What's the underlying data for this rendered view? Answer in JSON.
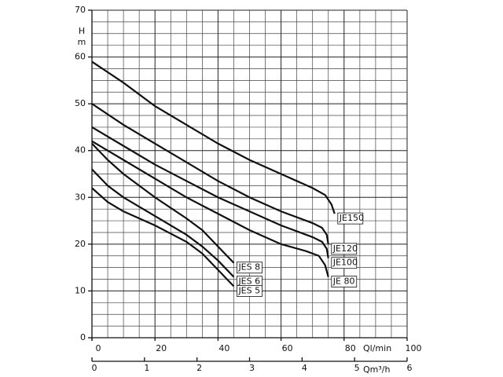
{
  "chart_data": {
    "type": "line",
    "y_label": "H",
    "y_unit": "m",
    "x_label": "Ql/min",
    "x2_label": "Qm³/h",
    "xlim": [
      0,
      100
    ],
    "xticks": [
      0,
      20,
      40,
      60,
      80,
      100
    ],
    "ylim": [
      0,
      70
    ],
    "yticks": [
      0,
      10,
      20,
      30,
      40,
      50,
      60,
      70
    ],
    "x2lim": [
      0,
      6
    ],
    "x2ticks": [
      0,
      1,
      2,
      3,
      4,
      5,
      6
    ],
    "grid": true,
    "series": [
      {
        "name": "JE150",
        "color": "#111111",
        "x": [
          0,
          10,
          20,
          30,
          40,
          50,
          60,
          70,
          74,
          76,
          77
        ],
        "values": [
          59,
          54.5,
          49.5,
          45.5,
          41.5,
          38,
          35,
          32,
          30.5,
          28.5,
          26.5
        ]
      },
      {
        "name": "JE120",
        "color": "#111111",
        "x": [
          0,
          10,
          20,
          30,
          40,
          50,
          60,
          70,
          73,
          74.5,
          75
        ],
        "values": [
          50,
          45.5,
          41.5,
          37.5,
          33.5,
          30,
          27,
          24.5,
          23.5,
          22,
          20
        ]
      },
      {
        "name": "JE100",
        "color": "#111111",
        "x": [
          0,
          10,
          20,
          30,
          40,
          50,
          60,
          70,
          73,
          74.5,
          75
        ],
        "values": [
          45,
          41,
          37,
          33.5,
          30,
          27,
          24,
          21.5,
          20.5,
          19,
          17
        ]
      },
      {
        "name": "JE 80",
        "color": "#111111",
        "x": [
          0,
          10,
          20,
          30,
          40,
          50,
          60,
          68,
          72,
          74,
          75
        ],
        "values": [
          42,
          38,
          34,
          30,
          26.5,
          23,
          20,
          18.5,
          17.5,
          15.5,
          13
        ]
      },
      {
        "name": "JES 8",
        "color": "#111111",
        "x": [
          0,
          5,
          10,
          20,
          30,
          35,
          40,
          45
        ],
        "values": [
          41.5,
          38,
          35,
          30,
          25.5,
          23,
          19.5,
          16
        ]
      },
      {
        "name": "JES 6",
        "color": "#111111",
        "x": [
          0,
          5,
          10,
          20,
          30,
          35,
          40,
          45
        ],
        "values": [
          36,
          32.5,
          30,
          26,
          22,
          19.5,
          16.5,
          13
        ]
      },
      {
        "name": "JES 5",
        "color": "#111111",
        "x": [
          0,
          5,
          10,
          20,
          30,
          35,
          40,
          45
        ],
        "values": [
          32,
          29,
          27,
          24,
          20.5,
          18,
          14.5,
          11
        ]
      }
    ]
  }
}
